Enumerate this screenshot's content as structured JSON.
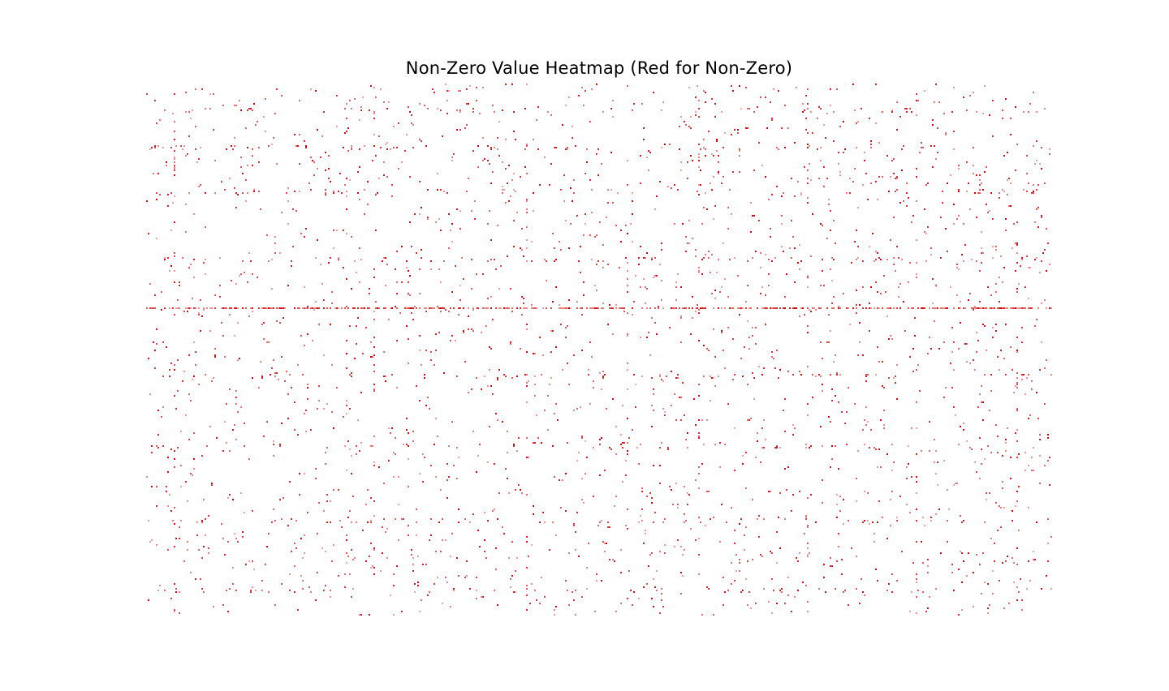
{
  "chart_data": {
    "type": "heatmap",
    "title": "Non-Zero Value Heatmap (Red for Non-Zero)",
    "colors": {
      "zero": "#ffffff",
      "nonzero": "#cc0000"
    },
    "axes_visible": false,
    "legend": "none",
    "grid": false,
    "dense_rows": [
      0.42
    ],
    "dense_columns": [
      0.03,
      0.22,
      0.25,
      0.42,
      0.53,
      0.61,
      0.73,
      0.85,
      0.96
    ],
    "row_band_fractions": [
      0.05,
      0.12,
      0.2,
      0.33,
      0.55,
      0.68,
      0.82,
      0.95
    ]
  }
}
